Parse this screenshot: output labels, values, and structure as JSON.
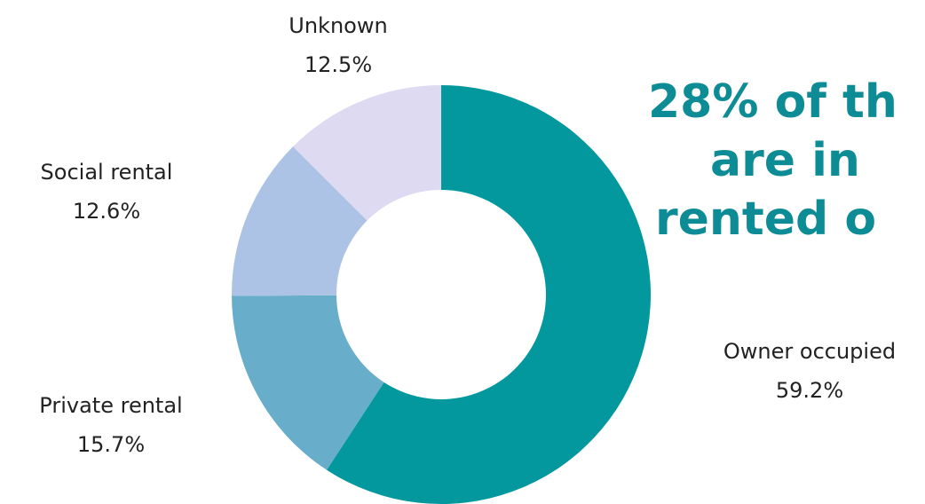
{
  "chart_data": {
    "type": "donut",
    "headline": [
      "28% of th",
      "are in",
      "rented o"
    ],
    "categories": [
      "Owner occupied",
      "Private rental",
      "Social rental",
      "Unknown"
    ],
    "values": [
      59.2,
      15.7,
      12.6,
      12.5
    ],
    "value_labels": [
      "59.2%",
      "15.7%",
      "12.6%",
      "12.5%"
    ],
    "colors": [
      "#03979e",
      "#68adc9",
      "#adc3e6",
      "#dedaf1"
    ]
  }
}
